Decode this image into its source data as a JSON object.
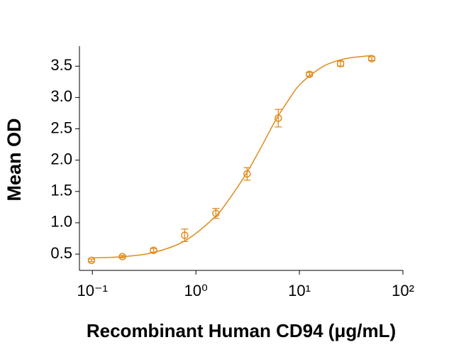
{
  "chart_data": {
    "type": "scatter",
    "x_label": "Recombinant Human CD94 (μg/mL)",
    "y_label": "Mean OD",
    "xscale": "log",
    "xlim": [
      0.075,
      100
    ],
    "xticks": [
      {
        "value": 0.1,
        "label": "10⁻¹"
      },
      {
        "value": 1,
        "label": "10⁰"
      },
      {
        "value": 10,
        "label": "10¹"
      },
      {
        "value": 100,
        "label": "10²"
      }
    ],
    "ylim": [
      0.24,
      3.82
    ],
    "yticks": [
      0.5,
      {
        "value": 1,
        "label": "1.0"
      },
      1.5,
      {
        "value": 2,
        "label": "2.0"
      },
      2.5,
      {
        "value": 3,
        "label": "3.0"
      },
      3.5
    ],
    "color": "#e08a1e",
    "x": [
      0.098,
      0.195,
      0.39,
      0.78,
      1.56,
      3.125,
      6.25,
      12.5,
      25,
      50
    ],
    "values": [
      0.4,
      0.46,
      0.56,
      0.8,
      1.15,
      1.78,
      2.67,
      3.37,
      3.54,
      3.62
    ],
    "errors": [
      0.02,
      0.02,
      0.03,
      0.1,
      0.08,
      0.1,
      0.14,
      0.03,
      0.04,
      0.03
    ],
    "fit": {
      "x": [
        0.1,
        0.2,
        0.4,
        0.8,
        1.5,
        2,
        3,
        4,
        5,
        6,
        8,
        10,
        15,
        20,
        30,
        50
      ],
      "values": [
        0.44,
        0.46,
        0.53,
        0.72,
        1.08,
        1.33,
        1.76,
        2.12,
        2.42,
        2.66,
        2.98,
        3.2,
        3.44,
        3.55,
        3.63,
        3.67
      ]
    }
  }
}
